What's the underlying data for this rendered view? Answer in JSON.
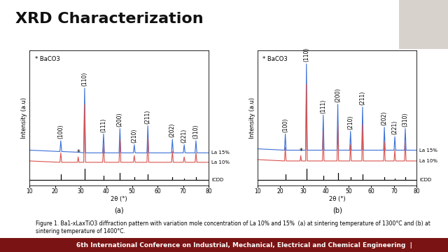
{
  "title": "XRD Characterization",
  "caption": "Figure 1. Ba1-xLaxTiO3 diffraction pattern with variation mole concentration of La 10% and 15%  (a) at sintering temperature of 1300°C and (b) at sintering temperature of 1400°C.",
  "footer": "6th International Conference on Industrial, Mechanical, Electrical and Chemical Engineering  |",
  "chart_data": [
    {
      "type": "line",
      "panel": "(a)",
      "note": "* BaCO3",
      "xlabel": "2θ (°)",
      "ylabel": "Intensity (a.u)",
      "xlim": [
        10,
        80
      ],
      "xticks": [
        10,
        20,
        30,
        40,
        50,
        60,
        70,
        80
      ],
      "ylim": [
        0,
        100
      ],
      "yticks": [],
      "tick_labels": "x",
      "series": [
        {
          "name": "La 15%",
          "color": "#3b6fd6",
          "x": [
            10,
            21.85,
            22.2,
            22.55,
            28.7,
            29.0,
            29.3,
            31.15,
            31.5,
            31.85,
            38.55,
            38.9,
            39.25,
            44.95,
            45.3,
            45.65,
            50.55,
            50.9,
            51.25,
            55.85,
            56.2,
            56.55,
            65.45,
            65.8,
            66.15,
            70.05,
            70.4,
            70.75,
            74.65,
            75.0,
            75.35,
            80
          ],
          "values": [
            26,
            25,
            33,
            25,
            24.5,
            24.5,
            24.5,
            24,
            72,
            24,
            24,
            38,
            24,
            24,
            42,
            24,
            24,
            30,
            24,
            24,
            44,
            24,
            24,
            34,
            24,
            24,
            30,
            24,
            24,
            33,
            24,
            24
          ]
        },
        {
          "name": "La 10%",
          "color": "#d9534f",
          "x": [
            10,
            21.85,
            22.2,
            22.55,
            28.7,
            29.0,
            29.3,
            31.15,
            31.5,
            31.85,
            38.55,
            38.9,
            39.25,
            44.95,
            45.3,
            45.65,
            50.55,
            50.9,
            51.25,
            55.85,
            56.2,
            56.55,
            65.45,
            65.8,
            66.15,
            70.05,
            70.4,
            70.75,
            74.65,
            75.0,
            75.35,
            80
          ],
          "values": [
            18,
            17,
            24,
            17,
            17,
            21,
            17,
            17,
            60,
            17,
            17,
            30,
            17,
            17,
            34,
            17,
            17,
            22,
            17,
            17,
            35,
            17,
            17,
            25,
            17,
            17,
            21,
            17,
            17,
            24,
            17,
            17
          ]
        },
        {
          "name": "ICDD",
          "color": "#000000",
          "x": [
            10,
            22.2,
            22.2,
            22.2,
            31.5,
            31.5,
            31.5,
            38.9,
            38.9,
            38.9,
            45.3,
            45.3,
            45.3,
            50.9,
            50.9,
            50.9,
            56.2,
            56.2,
            56.2,
            65.8,
            65.8,
            65.8,
            70.4,
            70.4,
            70.4,
            75.0,
            75.0,
            75.0,
            80
          ],
          "values": [
            4,
            4,
            8,
            4,
            4,
            12,
            4,
            4,
            7,
            4,
            4,
            9,
            4,
            4,
            6,
            4,
            4,
            8,
            4,
            4,
            6,
            4,
            4,
            5,
            4,
            4,
            6,
            4,
            4
          ]
        }
      ],
      "peaks": [
        {
          "x": 22.2,
          "label": "(100)"
        },
        {
          "x": 31.5,
          "label": "(110)"
        },
        {
          "x": 38.9,
          "label": "(111)"
        },
        {
          "x": 45.3,
          "label": "(200)"
        },
        {
          "x": 50.9,
          "label": "(210)"
        },
        {
          "x": 56.2,
          "label": "(211)"
        },
        {
          "x": 65.8,
          "label": "(202)"
        },
        {
          "x": 70.4,
          "label": "(221)"
        },
        {
          "x": 75.0,
          "label": "(310)"
        }
      ],
      "annotations": [
        {
          "x": 29.0,
          "y": 21,
          "text": "*"
        }
      ]
    },
    {
      "type": "line",
      "panel": "(b)",
      "note": "* BaCO3",
      "xlabel": "2θ (°)",
      "ylabel": "Intensity (a.u)",
      "xlim": [
        10,
        80
      ],
      "xticks": [
        10,
        20,
        30,
        40,
        50,
        60,
        70,
        80
      ],
      "ylim": [
        0,
        100
      ],
      "yticks": [],
      "tick_labels": "x",
      "series": [
        {
          "name": "La 15%",
          "color": "#3b6fd6",
          "x": [
            10,
            21.85,
            22.2,
            22.55,
            28.7,
            29.0,
            29.3,
            31.15,
            31.5,
            31.85,
            38.55,
            38.9,
            39.25,
            44.95,
            45.3,
            45.65,
            50.55,
            50.9,
            51.25,
            55.85,
            56.2,
            56.55,
            65.45,
            65.8,
            66.15,
            70.05,
            70.4,
            70.75,
            74.65,
            75.0,
            75.35,
            80
          ],
          "values": [
            27,
            26,
            38,
            26,
            26,
            26,
            26,
            26,
            90,
            26,
            26,
            52,
            26,
            26,
            60,
            26,
            26,
            40,
            26,
            26,
            58,
            26,
            26,
            43,
            26,
            26,
            36,
            26,
            26,
            42,
            26,
            26
          ]
        },
        {
          "name": "La 10%",
          "color": "#d9534f",
          "x": [
            10,
            21.85,
            22.2,
            22.55,
            28.7,
            29.0,
            29.3,
            31.15,
            31.5,
            31.85,
            38.55,
            38.9,
            39.25,
            44.95,
            45.3,
            45.65,
            50.55,
            50.9,
            51.25,
            55.85,
            56.2,
            56.55,
            65.45,
            65.8,
            66.15,
            70.05,
            70.4,
            70.75,
            74.65,
            75.0,
            75.35,
            80
          ],
          "values": [
            19,
            18,
            28,
            18,
            18,
            22,
            18,
            18,
            75,
            18,
            18,
            40,
            18,
            18,
            45,
            18,
            18,
            30,
            18,
            18,
            45,
            18,
            18,
            32,
            18,
            18,
            26,
            18,
            18,
            32,
            18,
            18
          ]
        },
        {
          "name": "ICDD",
          "color": "#000000",
          "x": [
            10,
            22.2,
            22.2,
            22.2,
            31.5,
            31.5,
            31.5,
            38.9,
            38.9,
            38.9,
            45.3,
            45.3,
            45.3,
            50.9,
            50.9,
            50.9,
            56.2,
            56.2,
            56.2,
            65.8,
            65.8,
            65.8,
            70.4,
            70.4,
            70.4,
            75.0,
            75.0,
            75.0,
            80
          ],
          "values": [
            4,
            4,
            8,
            4,
            4,
            12,
            4,
            4,
            7,
            4,
            4,
            9,
            4,
            4,
            6,
            4,
            4,
            8,
            4,
            4,
            6,
            4,
            4,
            5,
            4,
            4,
            6,
            4,
            4
          ]
        }
      ],
      "peaks": [
        {
          "x": 22.2,
          "label": "(100)"
        },
        {
          "x": 31.5,
          "label": "(110)"
        },
        {
          "x": 38.9,
          "label": "(111)"
        },
        {
          "x": 45.3,
          "label": "(200)"
        },
        {
          "x": 50.9,
          "label": "(210)"
        },
        {
          "x": 56.2,
          "label": "(211)"
        },
        {
          "x": 65.8,
          "label": "(202)"
        },
        {
          "x": 70.4,
          "label": "(221)"
        },
        {
          "x": 75.0,
          "label": "(310)"
        }
      ],
      "annotations": [
        {
          "x": 29.0,
          "y": 22,
          "text": "*"
        }
      ]
    }
  ]
}
